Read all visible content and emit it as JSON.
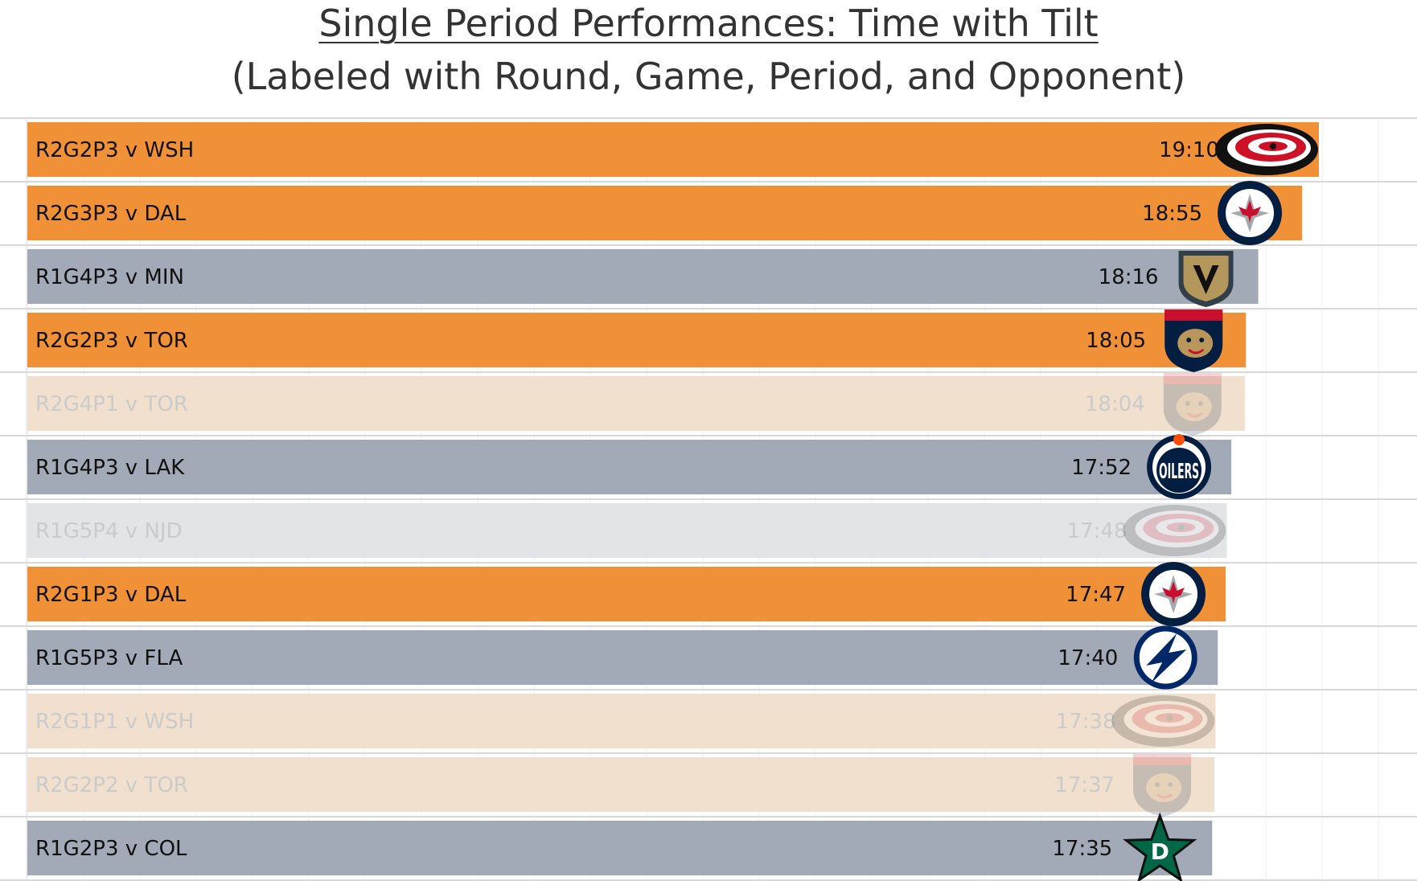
{
  "title": "Single Period Performances: Time with Tilt",
  "subtitle": "(Labeled with Round, Game, Period, and Opponent)",
  "colors": {
    "highlight": "#F09137",
    "base": "#A2AAB7",
    "faded_highlight": "#F1E0CD",
    "faded_base": "#E3E4E6",
    "faded_text": "#CBCBCB",
    "text": "#111111"
  },
  "chart_data": {
    "type": "bar",
    "orientation": "horizontal",
    "title": "Single Period Performances: Time with Tilt",
    "subtitle": "(Labeled with Round, Game, Period, and Opponent)",
    "xlim_seconds": [
      0,
      1150
    ],
    "grid": true,
    "categories": [
      "R2G2P3 v WSH",
      "R2G3P3 v DAL",
      "R1G4P3 v MIN",
      "R2G2P3 v TOR",
      "R2G4P1 v TOR",
      "R1G4P3 v LAK",
      "R1G5P4 v NJD",
      "R2G1P3 v DAL",
      "R1G5P3 v FLA",
      "R2G1P1 v WSH",
      "R2G2P2 v TOR",
      "R1G2P3 v COL"
    ],
    "values": [
      "19:10",
      "18:55",
      "18:16",
      "18:05",
      "18:04",
      "17:52",
      "17:48",
      "17:47",
      "17:40",
      "17:38",
      "17:37",
      "17:35"
    ],
    "values_seconds": [
      1150,
      1135,
      1096,
      1085,
      1084,
      1072,
      1068,
      1067,
      1060,
      1058,
      1057,
      1055
    ],
    "round": [
      2,
      2,
      1,
      2,
      2,
      1,
      1,
      2,
      1,
      2,
      2,
      1
    ],
    "faded": [
      false,
      false,
      false,
      false,
      true,
      false,
      true,
      false,
      false,
      true,
      true,
      false
    ],
    "team_logos": [
      "hurricanes-logo",
      "jets-logo",
      "golden-knights-logo",
      "panthers-logo",
      "panthers-logo",
      "oilers-logo",
      "hurricanes-logo",
      "jets-logo",
      "lightning-logo",
      "hurricanes-logo",
      "panthers-logo",
      "stars-logo"
    ]
  }
}
